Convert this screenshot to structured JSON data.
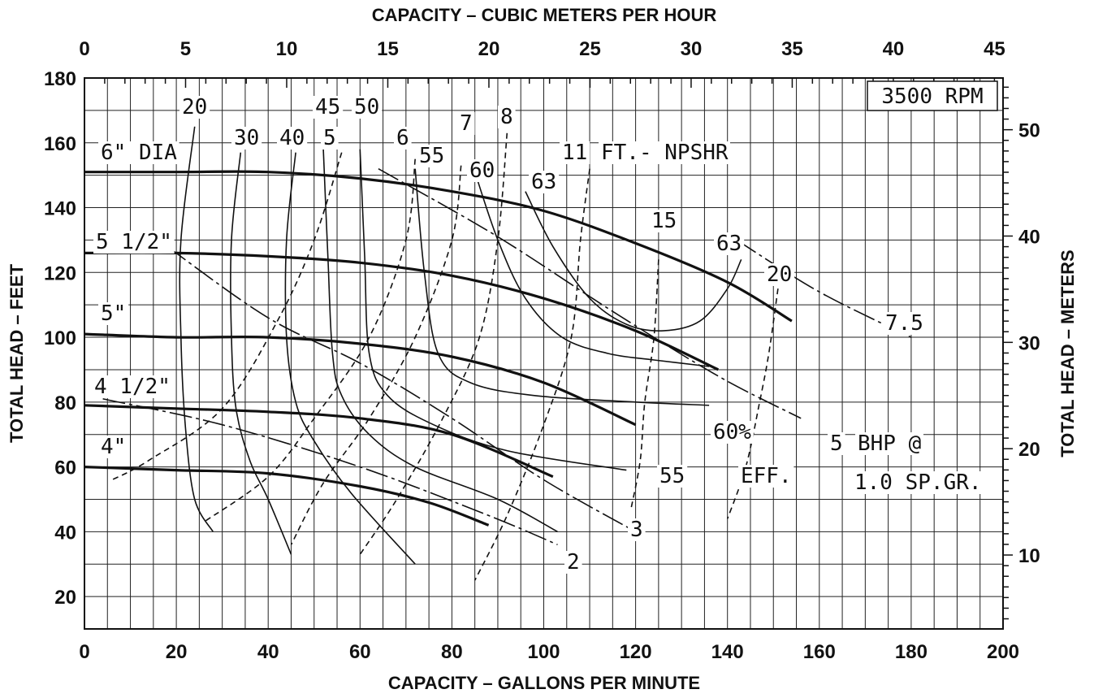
{
  "chart_data": {
    "type": "line",
    "title": "",
    "xlabel": "CAPACITY – GALLONS PER MINUTE",
    "x2label": "CAPACITY – CUBIC METERS PER HOUR",
    "ylabel": "TOTAL HEAD – FEET",
    "y2label": "TOTAL HEAD – METERS",
    "xlim": [
      0,
      200
    ],
    "ylim": [
      10,
      180
    ],
    "x_ticks": [
      "0",
      "20",
      "40",
      "60",
      "80",
      "100",
      "120",
      "140",
      "160",
      "180",
      "200"
    ],
    "y_ticks": [
      "20",
      "40",
      "60",
      "80",
      "100",
      "120",
      "140",
      "160",
      "180"
    ],
    "x2_lim": [
      0,
      45
    ],
    "x2_ticks": [
      "0",
      "5",
      "10",
      "15",
      "20",
      "25",
      "30",
      "35",
      "40",
      "45"
    ],
    "y2_ticks": [
      "10",
      "20",
      "30",
      "40",
      "50"
    ],
    "grid": true,
    "speed_label": "3500 RPM",
    "head_curves": [
      {
        "name": "6\" DIA",
        "points": [
          [
            0,
            151
          ],
          [
            20,
            151
          ],
          [
            40,
            151
          ],
          [
            60,
            149
          ],
          [
            80,
            145
          ],
          [
            100,
            139
          ],
          [
            120,
            129
          ],
          [
            140,
            117
          ],
          [
            154,
            105
          ]
        ]
      },
      {
        "name": "5 1/2\"",
        "points": [
          [
            0,
            126
          ],
          [
            20,
            126
          ],
          [
            40,
            125
          ],
          [
            60,
            123
          ],
          [
            80,
            119
          ],
          [
            100,
            112
          ],
          [
            120,
            102
          ],
          [
            138,
            90
          ]
        ]
      },
      {
        "name": "5\"",
        "points": [
          [
            0,
            101
          ],
          [
            20,
            100
          ],
          [
            40,
            100
          ],
          [
            60,
            98
          ],
          [
            80,
            94
          ],
          [
            100,
            86
          ],
          [
            120,
            73
          ]
        ]
      },
      {
        "name": "4 1/2\"",
        "points": [
          [
            0,
            79
          ],
          [
            20,
            78
          ],
          [
            40,
            77
          ],
          [
            60,
            75
          ],
          [
            80,
            70
          ],
          [
            102,
            57
          ]
        ]
      },
      {
        "name": "4\"",
        "points": [
          [
            0,
            60
          ],
          [
            20,
            59
          ],
          [
            40,
            58
          ],
          [
            60,
            54
          ],
          [
            75,
            49
          ],
          [
            88,
            42
          ]
        ]
      }
    ],
    "efficiency_curves": [
      {
        "label": "20",
        "points": [
          [
            24,
            165
          ],
          [
            21,
            130
          ],
          [
            21,
            100
          ],
          [
            22,
            72
          ],
          [
            24,
            50
          ],
          [
            28,
            40
          ]
        ]
      },
      {
        "label": "30",
        "points": [
          [
            34,
            157
          ],
          [
            32,
            130
          ],
          [
            32,
            100
          ],
          [
            33,
            78
          ],
          [
            36,
            62
          ],
          [
            40,
            50
          ],
          [
            45,
            33
          ]
        ]
      },
      {
        "label": "40",
        "points": [
          [
            46,
            157
          ],
          [
            44,
            130
          ],
          [
            44,
            100
          ],
          [
            46,
            80
          ],
          [
            50,
            68
          ],
          [
            58,
            52
          ],
          [
            72,
            30
          ]
        ]
      },
      {
        "label": "45",
        "points": [
          [
            52,
            158
          ],
          [
            53,
            125
          ],
          [
            54,
            95
          ],
          [
            56,
            82
          ],
          [
            62,
            70
          ],
          [
            72,
            60
          ],
          [
            90,
            50
          ],
          [
            103,
            40
          ]
        ]
      },
      {
        "label": "50",
        "points": [
          [
            60,
            158
          ],
          [
            61,
            125
          ],
          [
            62,
            95
          ],
          [
            66,
            82
          ],
          [
            76,
            73
          ],
          [
            92,
            65
          ],
          [
            118,
            59
          ]
        ]
      },
      {
        "label": "55",
        "points": [
          [
            72,
            152
          ],
          [
            74,
            120
          ],
          [
            77,
            95
          ],
          [
            84,
            86
          ],
          [
            98,
            82
          ],
          [
            120,
            80
          ],
          [
            136,
            79
          ]
        ]
      },
      {
        "label": "60",
        "points": [
          [
            85,
            151
          ],
          [
            90,
            130
          ],
          [
            96,
            112
          ],
          [
            104,
            100
          ],
          [
            114,
            95
          ],
          [
            124,
            93
          ],
          [
            136,
            91
          ]
        ]
      },
      {
        "label": "63",
        "points": [
          [
            96,
            145
          ],
          [
            102,
            128
          ],
          [
            110,
            112
          ],
          [
            118,
            104
          ],
          [
            126,
            102
          ],
          [
            134,
            105
          ],
          [
            140,
            115
          ],
          [
            143,
            124
          ]
        ]
      }
    ],
    "npshr_curves": [
      {
        "label": "5",
        "points": [
          [
            56,
            157
          ],
          [
            50,
            130
          ],
          [
            42,
            105
          ],
          [
            30,
            78
          ],
          [
            14,
            62
          ],
          [
            6,
            56
          ]
        ]
      },
      {
        "label": "6",
        "points": [
          [
            72,
            155
          ],
          [
            70,
            130
          ],
          [
            62,
            100
          ],
          [
            50,
            75
          ],
          [
            40,
            57
          ],
          [
            26,
            43
          ]
        ]
      },
      {
        "label": "7",
        "points": [
          [
            82,
            153
          ],
          [
            80,
            130
          ],
          [
            72,
            100
          ],
          [
            62,
            75
          ],
          [
            52,
            55
          ],
          [
            45,
            36
          ]
        ]
      },
      {
        "label": "8",
        "points": [
          [
            92,
            163
          ],
          [
            90,
            130
          ],
          [
            86,
            100
          ],
          [
            78,
            75
          ],
          [
            68,
            50
          ],
          [
            60,
            33
          ]
        ]
      },
      {
        "label": "11",
        "points": [
          [
            110,
            152
          ],
          [
            108,
            130
          ],
          [
            106,
            100
          ],
          [
            100,
            73
          ],
          [
            92,
            45
          ],
          [
            85,
            25
          ]
        ]
      },
      {
        "label": "15",
        "points": [
          [
            125,
            124
          ],
          [
            124,
            100
          ],
          [
            122,
            80
          ],
          [
            121,
            62
          ],
          [
            119,
            47
          ]
        ]
      },
      {
        "label": "20",
        "points": [
          [
            151,
            115
          ],
          [
            149,
            95
          ],
          [
            147,
            80
          ],
          [
            144,
            60
          ],
          [
            140,
            44
          ]
        ]
      }
    ],
    "bhp_curves": [
      {
        "label": "2",
        "points": [
          [
            4,
            81
          ],
          [
            30,
            73
          ],
          [
            60,
            60
          ],
          [
            88,
            45
          ],
          [
            103,
            36
          ]
        ]
      },
      {
        "label": "3",
        "points": [
          [
            18,
            128
          ],
          [
            40,
            106
          ],
          [
            60,
            92
          ],
          [
            80,
            75
          ],
          [
            100,
            56
          ],
          [
            120,
            40
          ]
        ]
      },
      {
        "label": "5",
        "points": [
          [
            64,
            152
          ],
          [
            90,
            131
          ],
          [
            115,
            108
          ],
          [
            138,
            88
          ],
          [
            156,
            75
          ]
        ]
      },
      {
        "label": "7.5",
        "points": [
          [
            142,
            130
          ],
          [
            160,
            114
          ],
          [
            180,
            100
          ]
        ]
      }
    ],
    "labels": {
      "npshr_unit": "FT.- NPSHR",
      "eff_pct": "60%",
      "eff_word": "EFF.",
      "eff_55": "55",
      "eff_63b": "63",
      "bhp_unit_1": "BHP @",
      "bhp_unit_2": "1.0 SP.GR.",
      "d6": "6\" DIA",
      "d55": "5 1/2\"",
      "d5": "5\"",
      "d45": "4 1/2\"",
      "d4": "4\"",
      "e20": "20",
      "e30": "30",
      "e40": "40",
      "e45": "45",
      "e50": "50",
      "e55": "55",
      "e60": "60",
      "e63": "63",
      "n5": "5",
      "n6": "6",
      "n7": "7",
      "n8": "8",
      "n11": "11",
      "n15": "15",
      "n20": "20",
      "b2": "2",
      "b3": "3",
      "b5": "5",
      "b75": "7.5"
    }
  }
}
